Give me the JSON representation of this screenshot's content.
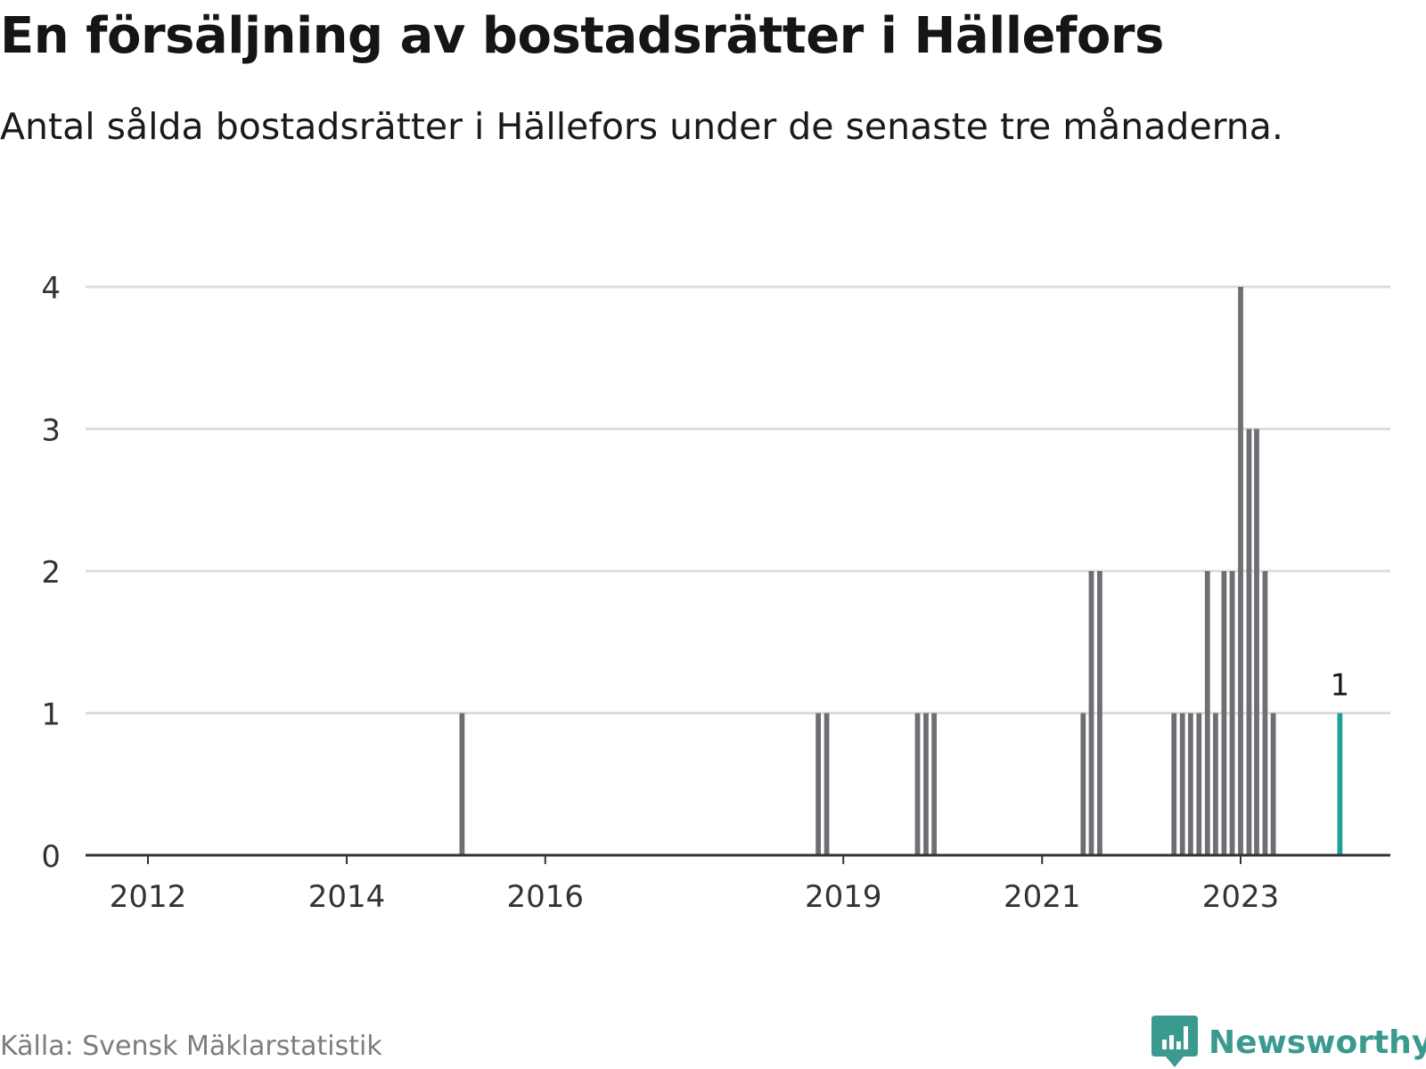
{
  "title": "En försäljning av bostadsrätter i Hällefors",
  "subtitle": "Antal sålda bostadsrätter i Hällefors under de senaste tre månaderna.",
  "source": "Källa: Svensk Mäklarstatistik",
  "brand": {
    "name": "Newsworthy",
    "icon": "newsworthy-logo-icon",
    "color": "#3a9a8f"
  },
  "colors": {
    "bar": "#6e6e73",
    "highlight": "#21a195",
    "grid": "#dddddd",
    "axis": "#333333"
  },
  "chart_data": {
    "type": "bar",
    "ylim": [
      0,
      4
    ],
    "yticks": [
      0,
      1,
      2,
      3,
      4
    ],
    "xticks": [
      "2012",
      "2014",
      "2016",
      "2019",
      "2021",
      "2023"
    ],
    "grid": true,
    "highlight_label": "1",
    "categories": [
      "2015-03",
      "2018-10",
      "2018-11",
      "2019-10",
      "2019-11",
      "2019-12",
      "2021-06",
      "2021-07",
      "2021-08",
      "2022-05",
      "2022-06",
      "2022-07",
      "2022-08",
      "2022-09",
      "2022-10",
      "2022-11",
      "2022-12",
      "2023-01",
      "2023-02",
      "2023-03",
      "2023-04",
      "2023-05",
      "2023-06",
      "2023-07",
      "2023-08",
      "2023-09",
      "2023-10",
      "2023-11",
      "2023-12",
      "2024-01"
    ],
    "values": [
      1,
      1,
      1,
      1,
      1,
      1,
      1,
      2,
      2,
      1,
      1,
      1,
      1,
      2,
      1,
      2,
      2,
      4,
      3,
      3,
      2,
      1,
      0,
      0,
      0,
      0,
      0,
      0,
      0,
      1
    ],
    "highlight": "2024-01"
  }
}
